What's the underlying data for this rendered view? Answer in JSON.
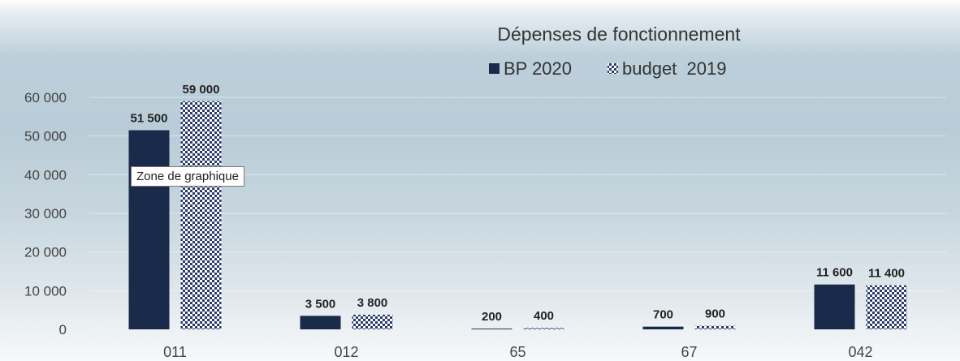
{
  "chart_data": {
    "type": "bar",
    "title": "Dépenses de fonctionnement",
    "categories": [
      "011",
      "012",
      "65",
      "67",
      "042"
    ],
    "series": [
      {
        "name": "BP 2020",
        "values": [
          51500,
          3500,
          200,
          700,
          11600
        ],
        "labels": [
          "51 500",
          "3 500",
          "200",
          "700",
          "11 600"
        ],
        "color": "#1a2a4a",
        "pattern": "solid"
      },
      {
        "name": "budget  2019",
        "values": [
          59000,
          3800,
          400,
          900,
          11400
        ],
        "labels": [
          "59 000",
          "3 800",
          "400",
          "900",
          "11 400"
        ],
        "color": "#2a3a6a",
        "pattern": "checker"
      }
    ],
    "yticks": [
      0,
      10000,
      20000,
      30000,
      40000,
      50000,
      60000
    ],
    "ytick_labels": [
      "0",
      "10 000",
      "20 000",
      "30 000",
      "40 000",
      "50 000",
      "60 000"
    ],
    "ylim": [
      0,
      60000
    ],
    "xlabel": "",
    "ylabel": "",
    "grid": true,
    "legend_position": "top-right"
  },
  "tooltip": {
    "text": "Zone de graphique"
  }
}
